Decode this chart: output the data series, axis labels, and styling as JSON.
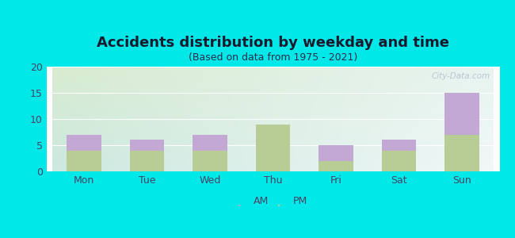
{
  "title": "Accidents distribution by weekday and time",
  "subtitle": "(Based on data from 1975 - 2021)",
  "categories": [
    "Mon",
    "Tue",
    "Wed",
    "Thu",
    "Fri",
    "Sat",
    "Sun"
  ],
  "am_values": [
    3,
    2,
    3,
    0,
    3,
    2,
    8
  ],
  "pm_values": [
    4,
    4,
    4,
    9,
    2,
    4,
    7
  ],
  "am_color": "#c4a8d4",
  "pm_color": "#b8cc96",
  "background_color": "#00e8e8",
  "ylim": [
    0,
    20
  ],
  "yticks": [
    0,
    5,
    10,
    15,
    20
  ],
  "bar_width": 0.55,
  "title_fontsize": 13,
  "subtitle_fontsize": 9,
  "tick_fontsize": 9,
  "legend_fontsize": 9,
  "title_color": "#1a1a2e",
  "subtitle_color": "#2a2a4a",
  "tick_color": "#444466",
  "watermark": "City-Data.com"
}
